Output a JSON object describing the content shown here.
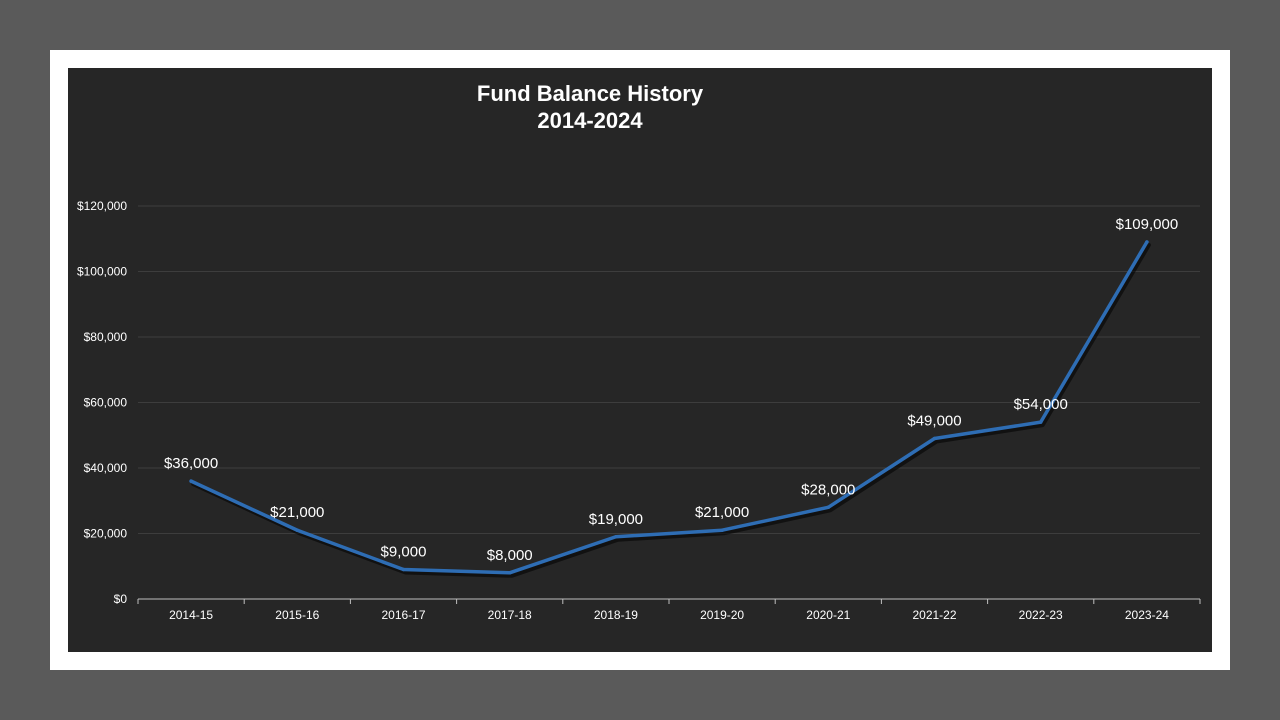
{
  "chart_data": {
    "type": "line",
    "title": "Fund Balance History",
    "subtitle": "2014-2024",
    "categories": [
      "2014-15",
      "2015-16",
      "2016-17",
      "2017-18",
      "2018-19",
      "2019-20",
      "2020-21",
      "2021-22",
      "2022-23",
      "2023-24"
    ],
    "series": [
      {
        "values": [
          36000,
          21000,
          9000,
          8000,
          19000,
          21000,
          28000,
          49000,
          54000,
          109000
        ],
        "color": "#2e6db4"
      }
    ],
    "data_labels": [
      "$36,000",
      "$21,000",
      "$9,000",
      "$8,000",
      "$19,000",
      "$21,000",
      "$28,000",
      "$49,000",
      "$54,000",
      "$109,000"
    ],
    "ylim": [
      0,
      120000
    ],
    "y_ticks": [
      0,
      20000,
      40000,
      60000,
      80000,
      100000,
      120000
    ],
    "y_tick_labels": [
      "$0",
      "$20,000",
      "$40,000",
      "$60,000",
      "$80,000",
      "$100,000",
      "$120,000"
    ],
    "xlabel": "",
    "ylabel": "",
    "grid": true,
    "legend": "none",
    "colors": {
      "background": "#262626",
      "gridline": "#3d3d3d",
      "axis": "#bfbfbf",
      "text": "#ffffff"
    }
  }
}
